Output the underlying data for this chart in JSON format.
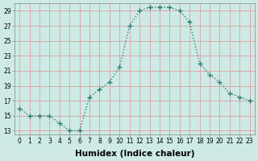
{
  "xlabel": "Humidex (Indice chaleur)",
  "x": [
    0,
    1,
    2,
    3,
    4,
    5,
    6,
    7,
    8,
    9,
    10,
    11,
    12,
    13,
    14,
    15,
    16,
    17,
    18,
    19,
    20,
    21,
    22,
    23
  ],
  "y": [
    16,
    15,
    15,
    15,
    14,
    13,
    13,
    17.5,
    18.5,
    19.5,
    21.5,
    27,
    29,
    29.5,
    29.5,
    29.5,
    29,
    27.5,
    22,
    20.5,
    19.5,
    18,
    17.5,
    17
  ],
  "line_color": "#2e7d6e",
  "marker": "+",
  "bg_color": "#ceeae6",
  "grid_color": "#b8d8d4",
  "ylim": [
    12.5,
    30
  ],
  "xlim": [
    -0.5,
    23.5
  ],
  "yticks": [
    13,
    15,
    17,
    19,
    21,
    23,
    25,
    27,
    29
  ],
  "xticks": [
    0,
    1,
    2,
    3,
    4,
    5,
    6,
    7,
    8,
    9,
    10,
    11,
    12,
    13,
    14,
    15,
    16,
    17,
    18,
    19,
    20,
    21,
    22,
    23
  ],
  "tick_fontsize": 5.5,
  "xlabel_fontsize": 7.5,
  "line_width": 1.0,
  "marker_size": 4,
  "marker_edge_width": 1.0
}
